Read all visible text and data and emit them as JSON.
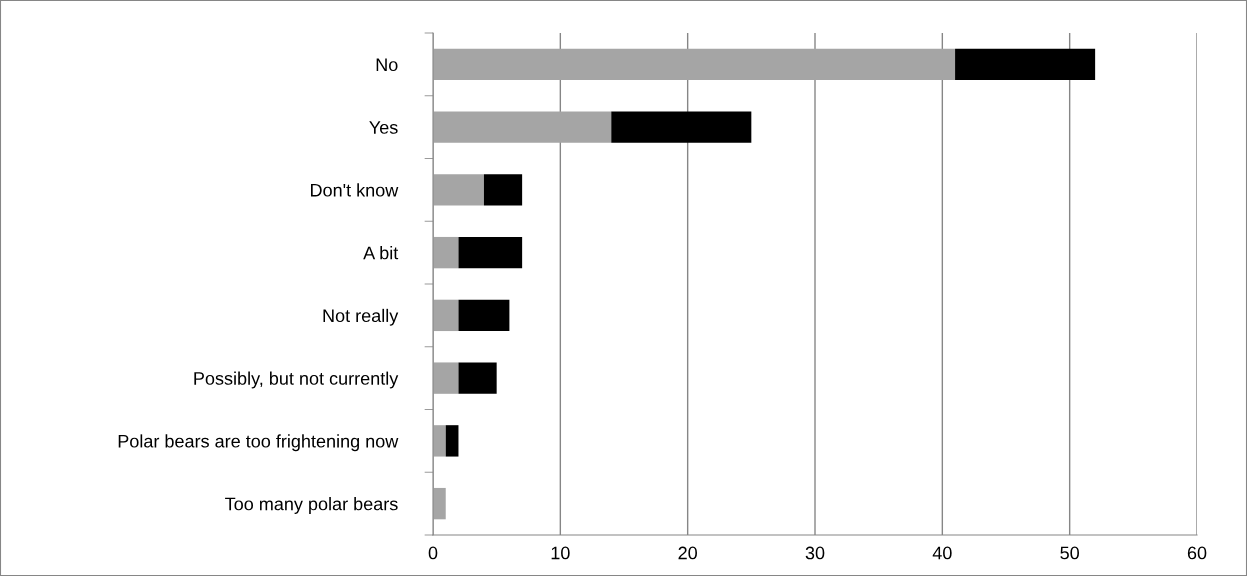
{
  "chart_data": {
    "type": "bar",
    "orientation": "horizontal",
    "stacked": true,
    "categories": [
      "No",
      "Yes",
      "Don't know",
      "A bit",
      "Not really",
      "Possibly, but not currently",
      "Polar bears are too frightening now",
      "Too many polar bears"
    ],
    "series": [
      {
        "color": "#a5a5a5",
        "values": [
          41,
          14,
          4,
          2,
          2,
          2,
          1,
          1
        ]
      },
      {
        "color": "#000000",
        "values": [
          11,
          11,
          3,
          5,
          4,
          3,
          1,
          0
        ]
      }
    ],
    "xlim": [
      0,
      60
    ],
    "xticks": [
      0,
      10,
      20,
      30,
      40,
      50,
      60
    ],
    "grid": "x",
    "legend": false
  }
}
